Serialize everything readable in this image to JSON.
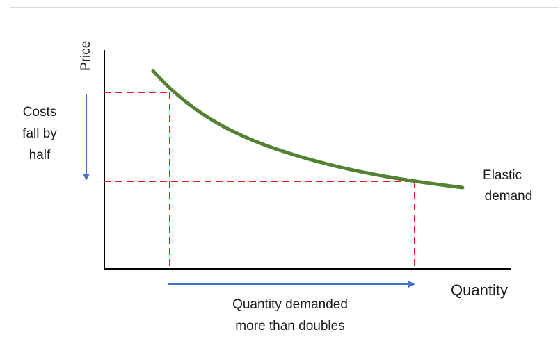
{
  "axes": {
    "y_label": "Price",
    "x_label": "Quantity"
  },
  "curve": {
    "label_line1": "Elastic",
    "label_line2": "demand",
    "color": "#548235"
  },
  "annotations": {
    "price_change_line1": "Costs",
    "price_change_line2": "fall by",
    "price_change_line3": "half",
    "quantity_change_line1": "Quantity demanded",
    "quantity_change_line2": "more than doubles"
  },
  "colors": {
    "guide_lines": "#e02020",
    "arrows": "#4472c4",
    "axes": "#000000"
  }
}
